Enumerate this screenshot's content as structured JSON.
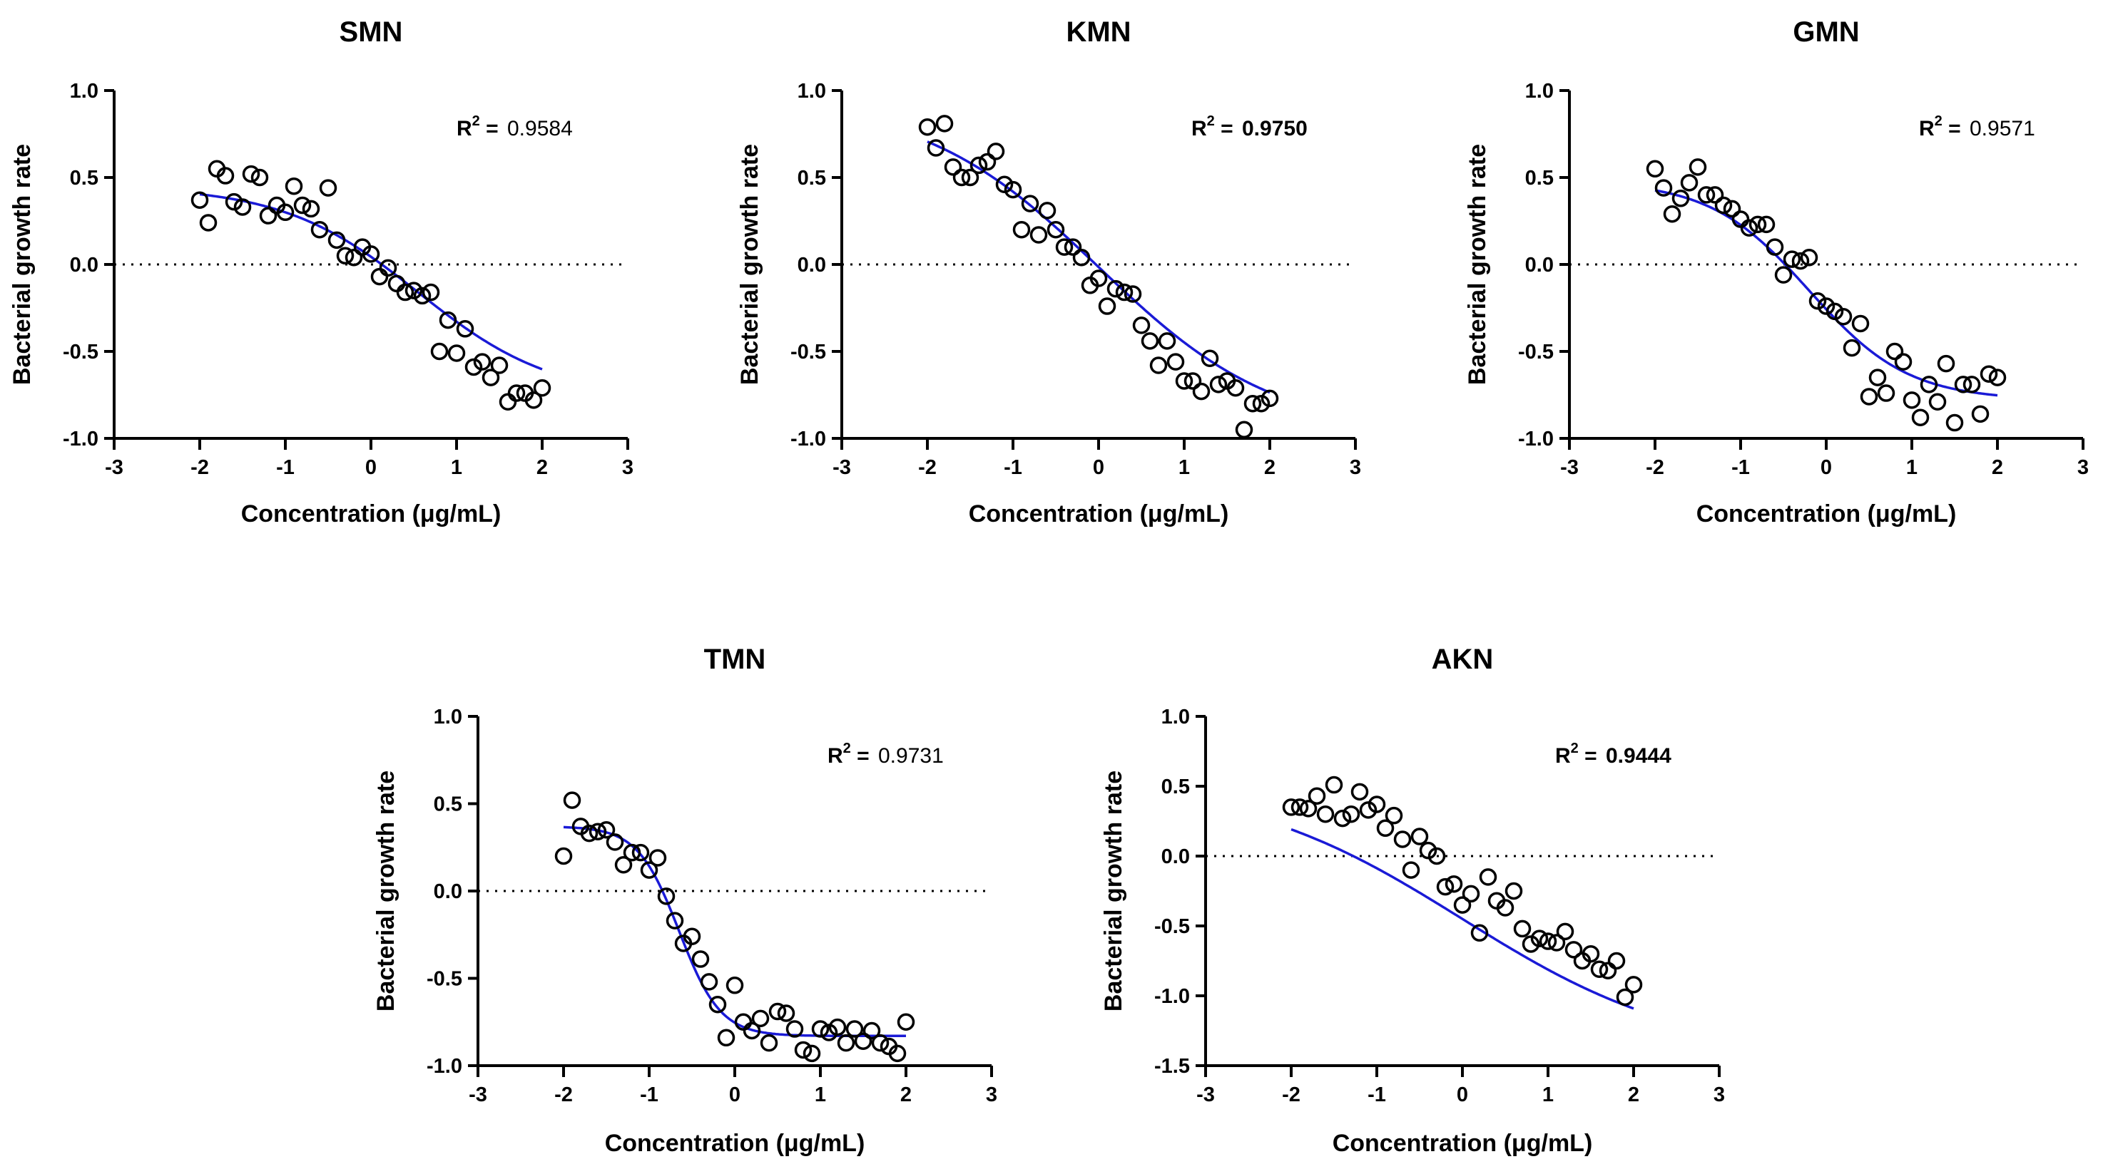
{
  "figure": {
    "x_label": "Concentration (μg/mL)",
    "y_label": "Bacterial growth rate",
    "r2_label": "R",
    "r2_sup": "2",
    "r2_eq": " = "
  },
  "colors": {
    "fit_line": "#1a1ad6",
    "points": "#000000",
    "axis": "#000000",
    "zero_line": "#000000"
  },
  "chart_data": [
    {
      "type": "scatter",
      "title": "SMN",
      "r2": "0.9584",
      "r2_bold": false,
      "xlabel": "Concentration (μg/mL)",
      "ylabel": "Bacterial growth rate",
      "xlim": [
        -3,
        3
      ],
      "ylim": [
        -1.0,
        1.0
      ],
      "xticks": [
        "-3",
        "-2",
        "-1",
        "0",
        "1",
        "2",
        "3"
      ],
      "yticks": [
        "-1.0",
        "-0.5",
        "0.0",
        "0.5",
        "1.0"
      ],
      "ytick_values": [
        -1.0,
        -0.5,
        0.0,
        0.5,
        1.0
      ],
      "zero_line": true,
      "x": [
        -2.0,
        -1.9,
        -1.8,
        -1.7,
        -1.6,
        -1.5,
        -1.4,
        -1.3,
        -1.2,
        -1.1,
        -1.0,
        -0.9,
        -0.8,
        -0.7,
        -0.6,
        -0.5,
        -0.4,
        -0.3,
        -0.2,
        -0.1,
        0.0,
        0.1,
        0.2,
        0.3,
        0.4,
        0.5,
        0.6,
        0.7,
        0.8,
        0.9,
        1.0,
        1.1,
        1.2,
        1.3,
        1.4,
        1.5,
        1.6,
        1.7,
        1.8,
        1.9,
        2.0
      ],
      "y": [
        0.37,
        0.24,
        0.55,
        0.51,
        0.36,
        0.33,
        0.52,
        0.5,
        0.28,
        0.34,
        0.3,
        0.45,
        0.34,
        0.32,
        0.2,
        0.44,
        0.14,
        0.05,
        0.04,
        0.1,
        0.06,
        -0.07,
        -0.02,
        -0.11,
        -0.16,
        -0.15,
        -0.18,
        -0.16,
        -0.5,
        -0.32,
        -0.51,
        -0.37,
        -0.59,
        -0.56,
        -0.65,
        -0.58,
        -0.79,
        -0.74,
        -0.74,
        -0.78,
        -0.71
      ],
      "fit": {
        "top": 0.45,
        "bottom": -0.77,
        "ec50": 0.55,
        "hill": 0.55
      }
    },
    {
      "type": "scatter",
      "title": "KMN",
      "r2": "0.9750",
      "r2_bold": true,
      "xlabel": "Concentration (μg/mL)",
      "ylabel": "Bacterial growth rate",
      "xlim": [
        -3,
        3
      ],
      "ylim": [
        -1.0,
        1.0
      ],
      "xticks": [
        "-3",
        "-2",
        "-1",
        "0",
        "1",
        "2",
        "3"
      ],
      "yticks": [
        "-1.0",
        "-0.5",
        "0.0",
        "0.5",
        "1.0"
      ],
      "ytick_values": [
        -1.0,
        -0.5,
        0.0,
        0.5,
        1.0
      ],
      "zero_line": true,
      "x": [
        -2.0,
        -1.9,
        -1.8,
        -1.7,
        -1.6,
        -1.5,
        -1.4,
        -1.3,
        -1.2,
        -1.1,
        -1.0,
        -0.9,
        -0.8,
        -0.7,
        -0.6,
        -0.5,
        -0.4,
        -0.3,
        -0.2,
        -0.1,
        0.0,
        0.1,
        0.2,
        0.3,
        0.4,
        0.5,
        0.6,
        0.7,
        0.8,
        0.9,
        1.0,
        1.1,
        1.2,
        1.3,
        1.4,
        1.5,
        1.6,
        1.7,
        1.8,
        1.9,
        2.0
      ],
      "y": [
        0.79,
        0.67,
        0.81,
        0.56,
        0.5,
        0.5,
        0.57,
        0.59,
        0.65,
        0.46,
        0.43,
        0.2,
        0.35,
        0.17,
        0.31,
        0.2,
        0.1,
        0.1,
        0.04,
        -0.12,
        -0.08,
        -0.24,
        -0.14,
        -0.16,
        -0.17,
        -0.35,
        -0.44,
        -0.58,
        -0.44,
        -0.56,
        -0.67,
        -0.67,
        -0.73,
        -0.54,
        -0.69,
        -0.67,
        -0.71,
        -0.95,
        -0.8,
        -0.8,
        -0.77
      ],
      "fit": {
        "top": 0.95,
        "bottom": -0.98,
        "ec50": 0.0,
        "hill": 0.42
      }
    },
    {
      "type": "scatter",
      "title": "GMN",
      "r2": "0.9571",
      "r2_bold": false,
      "xlabel": "Concentration (μg/mL)",
      "ylabel": "Bacterial growth rate",
      "xlim": [
        -3,
        3
      ],
      "ylim": [
        -1.0,
        1.0
      ],
      "xticks": [
        "-3",
        "-2",
        "-1",
        "0",
        "1",
        "2",
        "3"
      ],
      "yticks": [
        "-1.0",
        "-0.5",
        "0.0",
        "0.5",
        "1.0"
      ],
      "ytick_values": [
        -1.0,
        -0.5,
        0.0,
        0.5,
        1.0
      ],
      "zero_line": true,
      "x": [
        -2.0,
        -1.9,
        -1.8,
        -1.7,
        -1.6,
        -1.5,
        -1.4,
        -1.3,
        -1.2,
        -1.1,
        -1.0,
        -0.9,
        -0.8,
        -0.7,
        -0.6,
        -0.5,
        -0.4,
        -0.3,
        -0.2,
        -0.1,
        0.0,
        0.1,
        0.2,
        0.3,
        0.4,
        0.5,
        0.6,
        0.7,
        0.8,
        0.9,
        1.0,
        1.1,
        1.2,
        1.3,
        1.4,
        1.5,
        1.6,
        1.7,
        1.8,
        1.9,
        2.0
      ],
      "y": [
        0.55,
        0.44,
        0.29,
        0.38,
        0.47,
        0.56,
        0.4,
        0.4,
        0.34,
        0.32,
        0.26,
        0.21,
        0.23,
        0.23,
        0.1,
        -0.06,
        0.03,
        0.02,
        0.04,
        -0.21,
        -0.24,
        -0.27,
        -0.3,
        -0.48,
        -0.34,
        -0.76,
        -0.65,
        -0.74,
        -0.5,
        -0.56,
        -0.78,
        -0.88,
        -0.69,
        -0.79,
        -0.57,
        -0.91,
        -0.69,
        -0.69,
        -0.86,
        -0.63,
        -0.65
      ],
      "fit": {
        "top": 0.48,
        "bottom": -0.78,
        "ec50": -0.2,
        "hill": 0.75
      }
    },
    {
      "type": "scatter",
      "title": "TMN",
      "r2": "0.9731",
      "r2_bold": false,
      "xlabel": "Concentration (μg/mL)",
      "ylabel": "Bacterial growth rate",
      "xlim": [
        -3,
        3
      ],
      "ylim": [
        -1.0,
        1.0
      ],
      "xticks": [
        "-3",
        "-2",
        "-1",
        "0",
        "1",
        "2",
        "3"
      ],
      "yticks": [
        "-1.0",
        "-0.5",
        "0.0",
        "0.5",
        "1.0"
      ],
      "ytick_values": [
        -1.0,
        -0.5,
        0.0,
        0.5,
        1.0
      ],
      "zero_line": true,
      "x": [
        -2.0,
        -1.9,
        -1.8,
        -1.7,
        -1.6,
        -1.5,
        -1.4,
        -1.3,
        -1.2,
        -1.1,
        -1.0,
        -0.9,
        -0.8,
        -0.7,
        -0.6,
        -0.5,
        -0.4,
        -0.3,
        -0.2,
        -0.1,
        0.0,
        0.1,
        0.2,
        0.3,
        0.4,
        0.5,
        0.6,
        0.7,
        0.8,
        0.9,
        1.0,
        1.1,
        1.2,
        1.3,
        1.4,
        1.5,
        1.6,
        1.7,
        1.8,
        1.9,
        2.0
      ],
      "y": [
        0.2,
        0.52,
        0.37,
        0.33,
        0.34,
        0.35,
        0.28,
        0.15,
        0.22,
        0.22,
        0.12,
        0.19,
        -0.03,
        -0.17,
        -0.3,
        -0.26,
        -0.39,
        -0.52,
        -0.65,
        -0.84,
        -0.54,
        -0.75,
        -0.8,
        -0.73,
        -0.87,
        -0.69,
        -0.7,
        -0.79,
        -0.91,
        -0.93,
        -0.79,
        -0.81,
        -0.78,
        -0.87,
        -0.79,
        -0.86,
        -0.8,
        -0.87,
        -0.89,
        -0.93,
        -0.75
      ],
      "fit": {
        "top": 0.37,
        "bottom": -0.83,
        "ec50": -0.65,
        "hill": 1.8
      }
    },
    {
      "type": "scatter",
      "title": "AKN",
      "r2": "0.9444",
      "r2_bold": true,
      "xlabel": "Concentration (μg/mL)",
      "ylabel": "Bacterial growth rate",
      "xlim": [
        -3,
        3
      ],
      "ylim": [
        -1.5,
        1.0
      ],
      "xticks": [
        "-3",
        "-2",
        "-1",
        "0",
        "1",
        "2",
        "3"
      ],
      "yticks": [
        "-1.5",
        "-1.0",
        "-0.5",
        "0.0",
        "0.5",
        "1.0"
      ],
      "ytick_values": [
        -1.5,
        -1.0,
        -0.5,
        0.0,
        0.5,
        1.0
      ],
      "zero_line": true,
      "x": [
        -2.0,
        -1.9,
        -1.8,
        -1.7,
        -1.6,
        -1.5,
        -1.4,
        -1.3,
        -1.2,
        -1.1,
        -1.0,
        -0.9,
        -0.8,
        -0.7,
        -0.6,
        -0.5,
        -0.4,
        -0.3,
        -0.2,
        -0.1,
        0.0,
        0.1,
        0.2,
        0.3,
        0.4,
        0.5,
        0.6,
        0.7,
        0.8,
        0.9,
        1.0,
        1.1,
        1.2,
        1.3,
        1.4,
        1.5,
        1.6,
        1.7,
        1.8,
        1.9,
        2.0
      ],
      "y": [
        0.35,
        0.35,
        0.34,
        0.43,
        0.3,
        0.51,
        0.27,
        0.3,
        0.46,
        0.33,
        0.37,
        0.2,
        0.29,
        0.12,
        -0.1,
        0.14,
        0.04,
        0.0,
        -0.22,
        -0.2,
        -0.35,
        -0.27,
        -0.55,
        -0.15,
        -0.32,
        -0.37,
        -0.25,
        -0.52,
        -0.63,
        -0.59,
        -0.61,
        -0.62,
        -0.54,
        -0.67,
        -0.75,
        -0.7,
        -0.81,
        -0.82,
        -0.75,
        -1.01,
        -0.92
      ],
      "fit": {
        "top": 0.55,
        "bottom": -1.45,
        "ec50": 0.0,
        "hill": 0.33
      }
    }
  ]
}
